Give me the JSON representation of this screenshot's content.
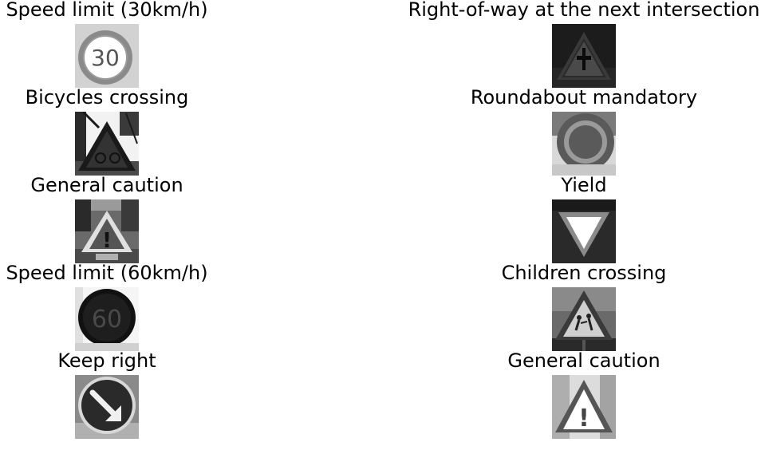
{
  "panels": [
    {
      "title": "Speed limit (30km/h)",
      "icon": "speed-limit-30-sign"
    },
    {
      "title": "Right-of-way at the next intersection",
      "icon": "right-of-way-sign"
    },
    {
      "title": "Bicycles crossing",
      "icon": "bicycles-crossing-sign"
    },
    {
      "title": "Roundabout mandatory",
      "icon": "roundabout-sign"
    },
    {
      "title": "General caution",
      "icon": "general-caution-sign"
    },
    {
      "title": "Yield",
      "icon": "yield-sign"
    },
    {
      "title": "Speed limit (60km/h)",
      "icon": "speed-limit-60-sign"
    },
    {
      "title": "Children crossing",
      "icon": "children-crossing-sign"
    },
    {
      "title": "Keep right",
      "icon": "keep-right-sign"
    },
    {
      "title": "General caution",
      "icon": "general-caution-sign"
    }
  ],
  "sign_text": {
    "speed30": "30",
    "speed60": "60",
    "caution": "!"
  },
  "colors": {
    "background": "#ffffff",
    "text": "#000000"
  }
}
